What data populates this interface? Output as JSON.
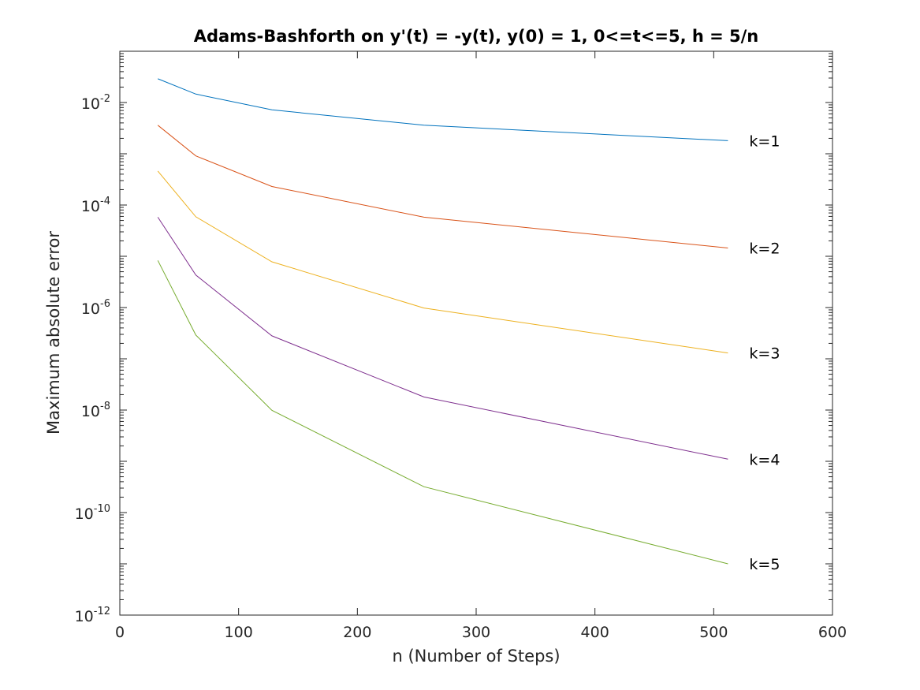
{
  "chart_data": {
    "type": "line",
    "title": "Adams-Bashforth on y'(t) = -y(t), y(0) = 1, 0<=t<=5, h = 5/n",
    "xlabel": "n (Number of Steps)",
    "ylabel": "Maximum absolute error",
    "xlim": [
      0,
      600
    ],
    "ylim": [
      1e-12,
      0.1
    ],
    "yscale": "log",
    "grid": false,
    "x_ticks": [
      "0",
      "100",
      "200",
      "300",
      "400",
      "500",
      "600"
    ],
    "y_ticks": [
      {
        "base": "10",
        "exp": "-12"
      },
      {
        "base": "10",
        "exp": "-10"
      },
      {
        "base": "10",
        "exp": "-8"
      },
      {
        "base": "10",
        "exp": "-6"
      },
      {
        "base": "10",
        "exp": "-4"
      },
      {
        "base": "10",
        "exp": "-2"
      }
    ],
    "x": [
      32,
      64,
      128,
      256,
      512
    ],
    "series": [
      {
        "name": "k=1",
        "color": "#0072BD",
        "values": [
          0.029,
          0.0146,
          0.0072,
          0.0036,
          0.0018
        ]
      },
      {
        "name": "k=2",
        "color": "#D95319",
        "values": [
          0.0036,
          0.00091,
          0.00023,
          5.8e-05,
          1.45e-05
        ]
      },
      {
        "name": "k=3",
        "color": "#EDB120",
        "values": [
          0.00046,
          5.9e-05,
          7.8e-06,
          9.8e-07,
          1.3e-07
        ]
      },
      {
        "name": "k=4",
        "color": "#7E2F8E",
        "values": [
          5.8e-05,
          4.3e-06,
          2.8e-07,
          1.8e-08,
          1.1e-09
        ]
      },
      {
        "name": "k=5",
        "color": "#77AC30",
        "values": [
          8.3e-06,
          2.9e-07,
          9.9e-09,
          3.2e-10,
          1e-11
        ]
      }
    ]
  }
}
